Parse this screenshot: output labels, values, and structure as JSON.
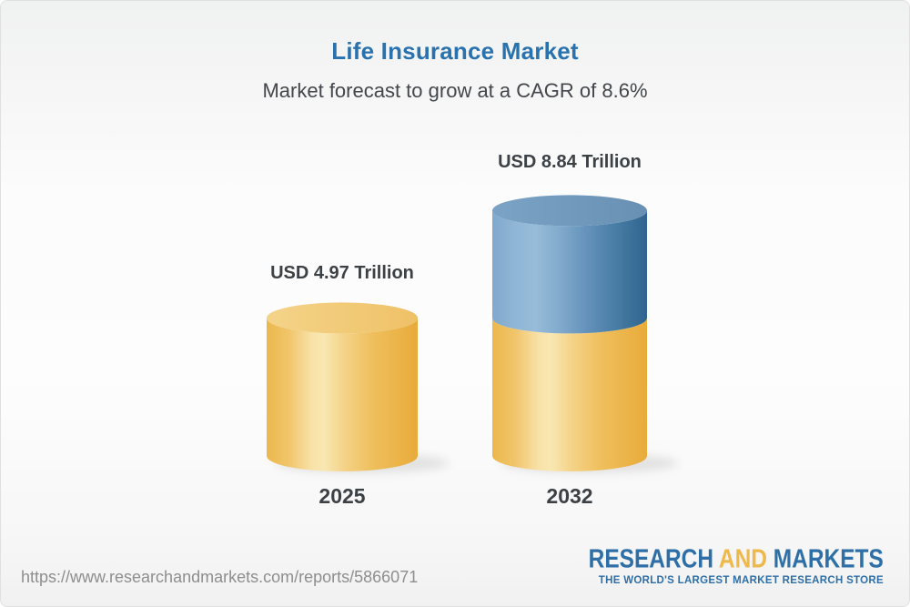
{
  "header": {
    "title": "Life Insurance Market",
    "subtitle": "Market forecast to grow at a CAGR of 8.6%"
  },
  "chart_data": {
    "type": "bar",
    "variant": "3d-cylinder",
    "title": "Life Insurance Market",
    "subtitle": "Market forecast to grow at a CAGR of 8.6%",
    "cagr": "8.6%",
    "unit": "USD Trillion",
    "categories": [
      "2025",
      "2032"
    ],
    "values": [
      4.97,
      8.84
    ],
    "bars": [
      {
        "year": "2025",
        "label": "USD 4.97 Trillion",
        "value": 4.97,
        "segments": [
          {
            "name": "base",
            "color_key": "gold",
            "value": 4.97
          }
        ]
      },
      {
        "year": "2032",
        "label": "USD 8.84 Trillion",
        "value": 8.84,
        "segments": [
          {
            "name": "base",
            "color_key": "gold",
            "value": 4.97
          },
          {
            "name": "growth",
            "color_key": "blue",
            "value": 3.87
          }
        ]
      }
    ],
    "colors": {
      "gold": "#F0C466",
      "blue": "#5D8CB5"
    },
    "legend_position": "none",
    "grid": false
  },
  "footer": {
    "url": "https://www.researchandmarkets.com/reports/5866071",
    "logo": {
      "part1": "RESEARCH",
      "part2": " AND ",
      "part3": "MARKETS",
      "tagline": "THE WORLD'S LARGEST MARKET RESEARCH STORE"
    }
  }
}
